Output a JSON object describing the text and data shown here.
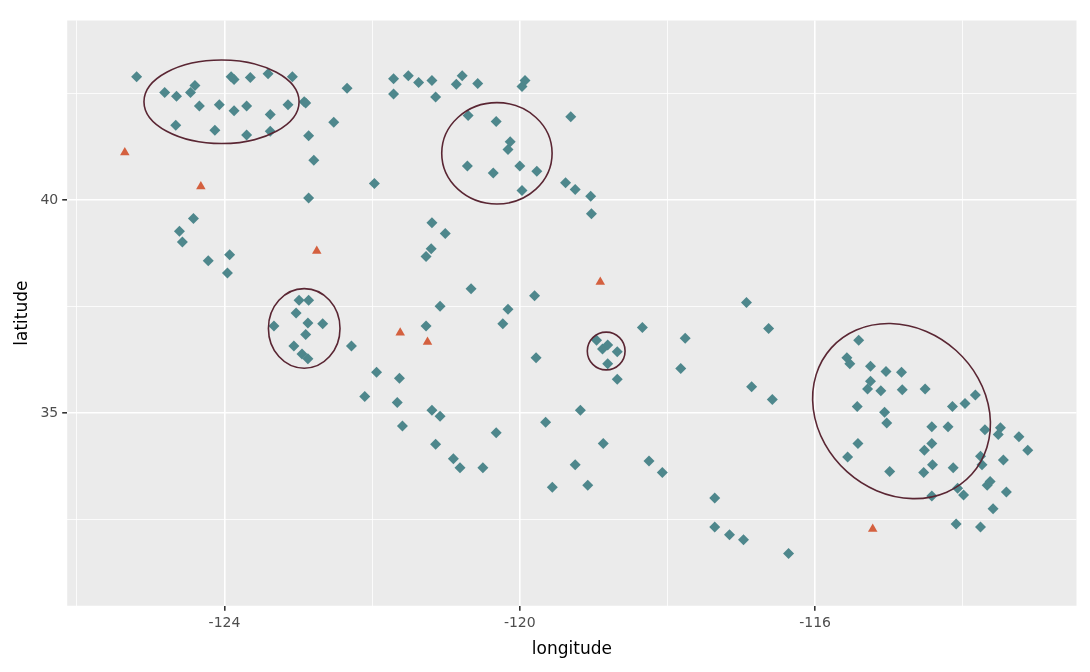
{
  "chart_data": {
    "type": "scatter",
    "xlabel": "longitude",
    "ylabel": "latitude",
    "xlim": [
      -126.13,
      -112.46
    ],
    "ylim": [
      30.48,
      44.22
    ],
    "xticks": [
      {
        "value": -126,
        "label": null
      },
      -124,
      {
        "value": -122,
        "label": null
      },
      -120,
      {
        "value": -118,
        "label": null
      },
      -116,
      {
        "value": -114,
        "label": null
      }
    ],
    "yticks": [
      {
        "value": 32.5,
        "label": null
      },
      35,
      {
        "value": 37.5,
        "label": null
      },
      40,
      {
        "value": 42.5,
        "label": null
      }
    ],
    "grid": true,
    "series": [
      {
        "type": "scatter",
        "marker": "diamond",
        "color": "#4e878c",
        "x": [
          -125.19,
          -124.81,
          -124.65,
          -124.46,
          -124.4,
          -124.34,
          -124.66,
          -124.13,
          -124.07,
          -123.91,
          -123.87,
          -123.87,
          -123.7,
          -123.65,
          -123.7,
          -123.41,
          -123.38,
          -123.38,
          -123.14,
          -123.08,
          -122.92,
          -122.9,
          -122.86,
          -122.79,
          -122.86,
          -122.52,
          -122.34,
          -121.71,
          -121.71,
          -121.51,
          -121.37,
          -121.19,
          -121.14,
          -120.86,
          -120.78,
          -120.57,
          -120.7,
          -120.32,
          -119.97,
          -119.93,
          -120.13,
          -120.16,
          -120.71,
          -120.36,
          -120,
          -119.77,
          -119.97,
          -119.31,
          -119.38,
          -119.25,
          -119.04,
          -119.03,
          -121.97,
          -124.61,
          -124.57,
          -124.42,
          -124.22,
          -123.93,
          -123.96,
          -121.19,
          -121.01,
          -121.2,
          -121.27,
          -120.66,
          -120.16,
          -119.8,
          -120.23,
          -119.78,
          -123.33,
          -123.03,
          -122.99,
          -122.86,
          -122.87,
          -122.67,
          -122.9,
          -123.06,
          -122.95,
          -122.87,
          -122.28,
          -121.94,
          -121.63,
          -122.1,
          -121.66,
          -121.59,
          -121.08,
          -121.27,
          -121.19,
          -121.08,
          -121.14,
          -120.9,
          -120.81,
          -120.5,
          -120.32,
          -119.65,
          -119.56,
          -119.25,
          -119.08,
          -119.18,
          -118.87,
          -118.96,
          -118.88,
          -118.81,
          -118.68,
          -118.81,
          -118.68,
          -118.34,
          -117.76,
          -117.82,
          -118.25,
          -118.07,
          -117.36,
          -117.36,
          -117.16,
          -116.93,
          -116.63,
          -116.86,
          -116.58,
          -116.97,
          -116.36,
          -115.41,
          -115.57,
          -115.53,
          -115.25,
          -115.04,
          -114.83,
          -115.25,
          -115.29,
          -115.11,
          -114.82,
          -114.51,
          -113.83,
          -113.97,
          -114.14,
          -115.43,
          -115.06,
          -115.03,
          -114.42,
          -114.2,
          -113.7,
          -113.49,
          -113.52,
          -113.24,
          -113.12,
          -115.42,
          -115.56,
          -114.42,
          -114.52,
          -114.99,
          -114.53,
          -114.41,
          -114.13,
          -113.76,
          -113.74,
          -113.45,
          -114.07,
          -113.99,
          -114.42,
          -113.67,
          -113.63,
          -113.41,
          -113.59,
          -114.09,
          -113.76
        ],
        "values": [
          42.9,
          42.53,
          42.44,
          42.53,
          42.69,
          42.21,
          41.76,
          41.64,
          42.24,
          42.9,
          42.83,
          42.1,
          42.21,
          42.88,
          41.53,
          42.97,
          42.01,
          41.62,
          42.24,
          42.9,
          42.31,
          42.28,
          41.51,
          40.94,
          40.05,
          41.83,
          42.63,
          42.49,
          42.85,
          42.92,
          42.76,
          42.81,
          42.42,
          42.72,
          42.92,
          42.74,
          41.99,
          41.85,
          42.67,
          42.81,
          41.37,
          41.19,
          40.8,
          40.64,
          40.8,
          40.68,
          40.23,
          41.96,
          40.41,
          40.25,
          40.09,
          39.68,
          40.39,
          39.27,
          39.02,
          39.57,
          38.58,
          38.72,
          38.29,
          39.47,
          39.22,
          38.86,
          38.68,
          37.92,
          37.44,
          37.76,
          37.1,
          36.3,
          37.05,
          37.35,
          37.65,
          37.65,
          37.12,
          37.1,
          36.85,
          36.58,
          36.39,
          36.28,
          36.58,
          35.96,
          35.82,
          35.39,
          35.25,
          34.7,
          37.51,
          37.05,
          35.07,
          34.93,
          34.27,
          33.93,
          33.72,
          33.72,
          34.54,
          34.79,
          33.26,
          33.79,
          33.31,
          35.07,
          34.29,
          36.71,
          36.51,
          36.6,
          36.44,
          36.16,
          35.8,
          37.01,
          36.76,
          36.05,
          33.88,
          33.61,
          33.01,
          32.33,
          32.15,
          37.6,
          36.99,
          35.62,
          35.32,
          32.03,
          31.71,
          36.71,
          36.3,
          36.16,
          36.1,
          35.98,
          35.96,
          35.75,
          35.57,
          35.53,
          35.55,
          35.57,
          35.43,
          35.23,
          35.16,
          35.16,
          35.02,
          34.77,
          34.68,
          34.68,
          34.61,
          34.66,
          34.5,
          34.45,
          34.13,
          34.29,
          33.97,
          34.29,
          34.13,
          33.63,
          33.61,
          33.79,
          33.72,
          33.99,
          33.79,
          33.9,
          33.24,
          33.08,
          33.06,
          33.31,
          33.4,
          33.15,
          32.76,
          32.4,
          32.33
        ]
      },
      {
        "type": "scatter",
        "marker": "triangle",
        "color": "#d4603f",
        "x": [
          -125.35,
          -124.32,
          -122.75,
          -121.62,
          -121.25,
          -118.91,
          -115.22
        ],
        "values": [
          41.12,
          40.32,
          38.81,
          36.89,
          36.67,
          38.08,
          32.28
        ]
      }
    ]
  }
}
